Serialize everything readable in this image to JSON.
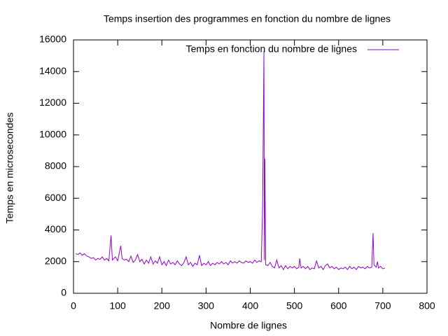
{
  "chart_data": {
    "type": "line",
    "title": "Temps insertion des programmes en fonction du nombre de lignes",
    "x_label": "Nombre de lignes",
    "y_label": "Temps en microsecondes",
    "x": [
      5,
      10,
      15,
      20,
      25,
      30,
      35,
      40,
      45,
      50,
      55,
      60,
      65,
      70,
      75,
      80,
      85,
      88,
      95,
      100,
      107,
      110,
      115,
      120,
      125,
      130,
      135,
      140,
      145,
      150,
      155,
      160,
      165,
      170,
      175,
      180,
      185,
      190,
      195,
      200,
      205,
      210,
      215,
      220,
      225,
      230,
      235,
      240,
      245,
      250,
      255,
      260,
      265,
      270,
      275,
      280,
      285,
      290,
      295,
      300,
      305,
      310,
      315,
      320,
      325,
      330,
      335,
      340,
      345,
      350,
      355,
      360,
      365,
      370,
      375,
      380,
      385,
      390,
      395,
      400,
      405,
      410,
      415,
      420,
      425,
      428,
      430,
      431,
      432,
      433,
      435,
      440,
      445,
      450,
      455,
      460,
      465,
      470,
      475,
      480,
      485,
      490,
      495,
      500,
      505,
      510,
      512,
      515,
      520,
      525,
      530,
      535,
      540,
      545,
      550,
      555,
      560,
      565,
      570,
      575,
      580,
      585,
      590,
      595,
      600,
      605,
      610,
      615,
      620,
      625,
      630,
      635,
      640,
      645,
      650,
      655,
      660,
      665,
      670,
      675,
      678,
      680,
      685,
      688,
      690,
      695,
      700,
      705
    ],
    "series": [
      {
        "name": "Temps en fonction du nombre de lignes",
        "color": "#9400d3",
        "values": [
          2500,
          2450,
          2550,
          2400,
          2500,
          2350,
          2300,
          2200,
          2250,
          2100,
          2200,
          2150,
          2300,
          2100,
          2200,
          2050,
          3650,
          2100,
          2300,
          2050,
          3000,
          2200,
          2100,
          2150,
          2000,
          2350,
          1950,
          2100,
          2450,
          2000,
          2150,
          1850,
          2100,
          1900,
          2300,
          1850,
          2050,
          1900,
          2300,
          1800,
          2000,
          1750,
          2100,
          1850,
          1950,
          1800,
          2050,
          1850,
          1750,
          1950,
          2300,
          1800,
          1950,
          1700,
          1900,
          1800,
          2400,
          1750,
          1900,
          1800,
          2000,
          1750,
          1900,
          1800,
          1950,
          1850,
          2000,
          1850,
          1950,
          1800,
          2050,
          1900,
          2000,
          1900,
          2050,
          1950,
          1900,
          2050,
          1950,
          2000,
          1900,
          2100,
          1950,
          2050,
          2000,
          5500,
          12000,
          15300,
          2100,
          8500,
          1800,
          1750,
          1950,
          1700,
          1600,
          2100,
          1600,
          1750,
          1500,
          1750,
          1550,
          1700,
          1600,
          1700,
          1550,
          1650,
          2200,
          1600,
          1700,
          1550,
          1700,
          1500,
          1600,
          1550,
          2050,
          1600,
          1700,
          1500,
          1750,
          1850,
          1600,
          1700,
          1550,
          1650,
          1500,
          1600,
          1550,
          1650,
          1500,
          1700,
          1550,
          1650,
          1500,
          1700,
          1600,
          1650,
          1550,
          1700,
          1600,
          1650,
          3800,
          1800,
          1650,
          2000,
          1600,
          1700,
          1550,
          1600
        ]
      }
    ],
    "xlim": [
      0,
      800
    ],
    "xticks": [
      0,
      100,
      200,
      300,
      400,
      500,
      600,
      700,
      800
    ],
    "ylim": [
      0,
      16000
    ],
    "yticks": [
      0,
      2000,
      4000,
      6000,
      8000,
      10000,
      12000,
      14000,
      16000
    ],
    "legend": "top right"
  }
}
